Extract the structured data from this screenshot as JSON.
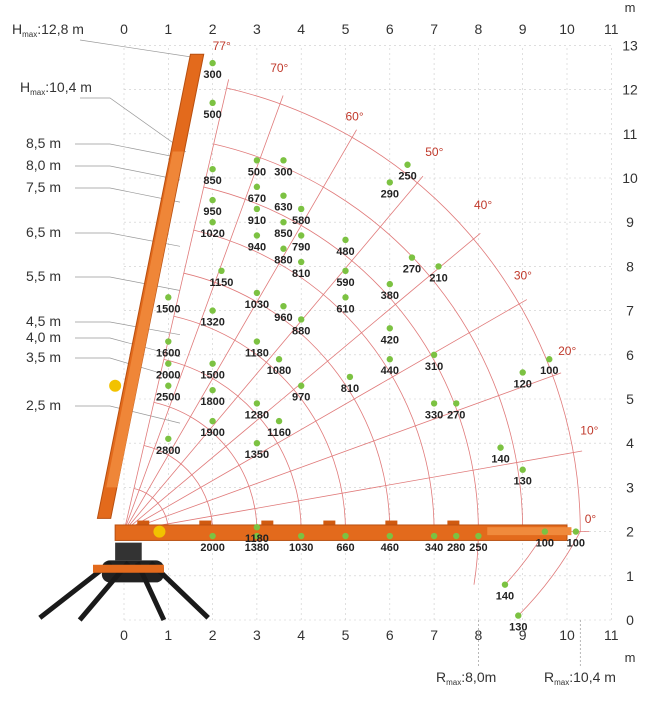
{
  "chart_data": {
    "type": "scatter",
    "title": "",
    "x_unit": "m",
    "y_unit": "m",
    "xlim": [
      0,
      11
    ],
    "ylim": [
      0,
      13
    ],
    "x_ticks": [
      "0",
      "1",
      "2",
      "3",
      "4",
      "5",
      "6",
      "7",
      "8",
      "9",
      "10",
      "11"
    ],
    "y_ticks": [
      "0",
      "1",
      "2",
      "3",
      "4",
      "5",
      "6",
      "7",
      "8",
      "9",
      "10",
      "11",
      "12",
      "13"
    ],
    "heights": [
      "8,5 m",
      "8,0 m",
      "7,5 m",
      "6,5 m",
      "5,5 m",
      "4,5 m",
      "4,0 m",
      "3,5 m",
      "2,5 m"
    ],
    "hmax": [
      {
        "label": "H",
        "sub": "max",
        "value": ":12,8 m"
      },
      {
        "label": "H",
        "sub": "max",
        "value": ":10,4 m"
      }
    ],
    "rmax": [
      {
        "label": "R",
        "sub": "max",
        "value": ":8,0m"
      },
      {
        "label": "R",
        "sub": "max",
        "value": ":10,4 m"
      }
    ],
    "angles": [
      "77°",
      "70°",
      "60°",
      "50°",
      "40°",
      "30°",
      "20°",
      "10°",
      "0°"
    ],
    "points": [
      {
        "x": 2.0,
        "y": 12.6,
        "label": "300"
      },
      {
        "x": 2.0,
        "y": 11.7,
        "label": "500"
      },
      {
        "x": 3.0,
        "y": 10.4,
        "label": "500"
      },
      {
        "x": 3.6,
        "y": 10.4,
        "label": "300"
      },
      {
        "x": 2.0,
        "y": 10.2,
        "label": "850"
      },
      {
        "x": 3.0,
        "y": 9.8,
        "label": "670"
      },
      {
        "x": 3.6,
        "y": 9.6,
        "label": "630"
      },
      {
        "x": 2.0,
        "y": 9.5,
        "label": "950"
      },
      {
        "x": 4.0,
        "y": 9.3,
        "label": "580"
      },
      {
        "x": 3.0,
        "y": 9.3,
        "label": "910"
      },
      {
        "x": 3.6,
        "y": 9.0,
        "label": "850"
      },
      {
        "x": 2.0,
        "y": 9.0,
        "label": "1020"
      },
      {
        "x": 3.0,
        "y": 8.7,
        "label": "940"
      },
      {
        "x": 4.0,
        "y": 8.7,
        "label": "790"
      },
      {
        "x": 3.6,
        "y": 8.4,
        "label": "880"
      },
      {
        "x": 4.0,
        "y": 8.1,
        "label": "810"
      },
      {
        "x": 2.2,
        "y": 7.9,
        "label": "1150"
      },
      {
        "x": 1.0,
        "y": 7.3,
        "label": "1500"
      },
      {
        "x": 3.0,
        "y": 7.4,
        "label": "1030"
      },
      {
        "x": 3.6,
        "y": 7.1,
        "label": "960"
      },
      {
        "x": 2.0,
        "y": 7.0,
        "label": "1320"
      },
      {
        "x": 4.0,
        "y": 6.8,
        "label": "880"
      },
      {
        "x": 1.0,
        "y": 6.3,
        "label": "1600"
      },
      {
        "x": 3.0,
        "y": 6.3,
        "label": "1180"
      },
      {
        "x": 3.5,
        "y": 5.9,
        "label": "1080"
      },
      {
        "x": 1.0,
        "y": 5.8,
        "label": "2000"
      },
      {
        "x": 2.0,
        "y": 5.8,
        "label": "1500"
      },
      {
        "x": 1.0,
        "y": 5.3,
        "label": "2500"
      },
      {
        "x": 2.0,
        "y": 5.2,
        "label": "1800"
      },
      {
        "x": 4.0,
        "y": 5.3,
        "label": "970"
      },
      {
        "x": 3.0,
        "y": 4.9,
        "label": "1280"
      },
      {
        "x": 2.0,
        "y": 4.5,
        "label": "1900"
      },
      {
        "x": 3.5,
        "y": 4.5,
        "label": "1160"
      },
      {
        "x": 1.0,
        "y": 4.1,
        "label": "2800"
      },
      {
        "x": 3.0,
        "y": 4.0,
        "label": "1350"
      },
      {
        "x": 5.0,
        "y": 8.6,
        "label": "480"
      },
      {
        "x": 5.0,
        "y": 7.9,
        "label": "590"
      },
      {
        "x": 5.0,
        "y": 7.3,
        "label": "610"
      },
      {
        "x": 5.1,
        "y": 5.5,
        "label": "810"
      },
      {
        "x": 6.0,
        "y": 9.9,
        "label": "290"
      },
      {
        "x": 6.4,
        "y": 10.3,
        "label": "250"
      },
      {
        "x": 6.5,
        "y": 8.2,
        "label": "270"
      },
      {
        "x": 7.1,
        "y": 8.0,
        "label": "210"
      },
      {
        "x": 6.0,
        "y": 7.6,
        "label": "380"
      },
      {
        "x": 6.0,
        "y": 6.6,
        "label": "420"
      },
      {
        "x": 6.0,
        "y": 5.9,
        "label": "440"
      },
      {
        "x": 7.0,
        "y": 6.0,
        "label": "310"
      },
      {
        "x": 7.0,
        "y": 4.9,
        "label": "330"
      },
      {
        "x": 7.5,
        "y": 4.9,
        "label": "270"
      },
      {
        "x": 9.0,
        "y": 5.6,
        "label": "120"
      },
      {
        "x": 9.6,
        "y": 5.9,
        "label": "100"
      },
      {
        "x": 8.5,
        "y": 3.9,
        "label": "140"
      },
      {
        "x": 9.0,
        "y": 3.4,
        "label": "130"
      },
      {
        "x": 2.0,
        "y": 1.9,
        "label": "2000"
      },
      {
        "x": 3.0,
        "y": 1.9,
        "label": "1380"
      },
      {
        "x": 3.0,
        "y": 2.1,
        "label": "1180"
      },
      {
        "x": 4.0,
        "y": 1.9,
        "label": "1030"
      },
      {
        "x": 5.0,
        "y": 1.9,
        "label": "660"
      },
      {
        "x": 6.0,
        "y": 1.9,
        "label": "460"
      },
      {
        "x": 7.0,
        "y": 1.9,
        "label": "340"
      },
      {
        "x": 7.5,
        "y": 1.9,
        "label": "280"
      },
      {
        "x": 8.0,
        "y": 1.9,
        "label": "250"
      },
      {
        "x": 9.5,
        "y": 2.0,
        "label": "100"
      },
      {
        "x": 10.2,
        "y": 2.0,
        "label": "100"
      },
      {
        "x": 8.6,
        "y": 0.8,
        "label": "140"
      },
      {
        "x": 8.9,
        "y": 0.1,
        "label": "130"
      }
    ],
    "colors": {
      "boom": "#e36a1c",
      "point": "#7cc242",
      "arc": "#e07a7a",
      "angle_text": "#c0392b",
      "grid": "#cccccc",
      "crawler": "#222222"
    }
  }
}
